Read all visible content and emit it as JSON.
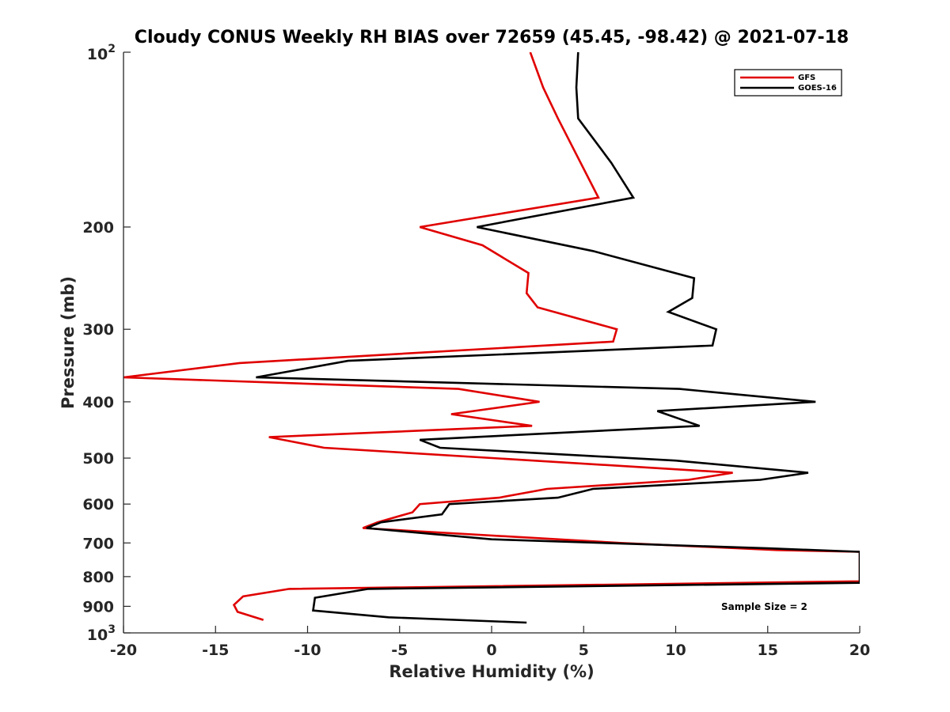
{
  "chart_data": {
    "type": "line",
    "title": "Cloudy CONUS Weekly RH BIAS over 72659 (45.45, -98.42) @ 2021-07-18",
    "xlabel": "Relative Humidity (%)",
    "ylabel": "Pressure (mb)",
    "xlim": [
      -20,
      20
    ],
    "ylim": [
      100,
      1000
    ],
    "y_scale": "log",
    "y_reversed": true,
    "x_ticks": [
      "-20",
      "-15",
      "-10",
      "-5",
      "0",
      "5",
      "10",
      "15",
      "20"
    ],
    "y_ticks": [
      {
        "value": 100,
        "base": "10",
        "exp": "2"
      },
      {
        "value": 200,
        "label": "200"
      },
      {
        "value": 300,
        "label": "300"
      },
      {
        "value": 400,
        "label": "400"
      },
      {
        "value": 500,
        "label": "500"
      },
      {
        "value": 600,
        "label": "600"
      },
      {
        "value": 700,
        "label": "700"
      },
      {
        "value": 800,
        "label": "800"
      },
      {
        "value": 900,
        "label": "900"
      },
      {
        "value": 1000,
        "base": "10",
        "exp": "3"
      }
    ],
    "grid": false,
    "legend_position": "top-right",
    "annotation": "Sample Size = 2",
    "series": [
      {
        "name": "GFS",
        "color": "#e00000",
        "points": [
          [
            2.1,
            100
          ],
          [
            2.8,
            115
          ],
          [
            3.6,
            130
          ],
          [
            5.8,
            178
          ],
          [
            -3.9,
            200
          ],
          [
            -0.5,
            215
          ],
          [
            2.0,
            240
          ],
          [
            1.9,
            260
          ],
          [
            2.5,
            275
          ],
          [
            6.8,
            300
          ],
          [
            6.6,
            315
          ],
          [
            -13.7,
            343
          ],
          [
            -20.0,
            363
          ],
          [
            -1.8,
            380
          ],
          [
            2.6,
            400
          ],
          [
            -2.2,
            420
          ],
          [
            2.2,
            440
          ],
          [
            -12.1,
            460
          ],
          [
            -9.1,
            480
          ],
          [
            13.1,
            530
          ],
          [
            10.7,
            545
          ],
          [
            3.0,
            565
          ],
          [
            0.4,
            585
          ],
          [
            -3.9,
            600
          ],
          [
            -4.3,
            620
          ],
          [
            -6.2,
            645
          ],
          [
            -7.0,
            660
          ],
          [
            7.0,
            700
          ],
          [
            15.5,
            720
          ],
          [
            20.0,
            725
          ],
          [
            20.0,
            815
          ],
          [
            -11.0,
            840
          ],
          [
            -13.5,
            865
          ],
          [
            -14.0,
            895
          ],
          [
            -13.8,
            920
          ],
          [
            -12.4,
            950
          ]
        ]
      },
      {
        "name": "GOES-16",
        "color": "#000000",
        "points": [
          [
            4.7,
            100
          ],
          [
            4.6,
            115
          ],
          [
            4.7,
            130
          ],
          [
            6.5,
            155
          ],
          [
            7.7,
            178
          ],
          [
            -0.8,
            200
          ],
          [
            5.5,
            220
          ],
          [
            11.0,
            245
          ],
          [
            10.9,
            265
          ],
          [
            9.6,
            280
          ],
          [
            12.2,
            300
          ],
          [
            12.0,
            320
          ],
          [
            -7.8,
            340
          ],
          [
            -12.8,
            363
          ],
          [
            10.2,
            380
          ],
          [
            17.6,
            400
          ],
          [
            9.0,
            415
          ],
          [
            11.3,
            440
          ],
          [
            -3.9,
            465
          ],
          [
            -2.8,
            480
          ],
          [
            10.0,
            505
          ],
          [
            17.2,
            530
          ],
          [
            14.6,
            545
          ],
          [
            5.5,
            565
          ],
          [
            3.6,
            585
          ],
          [
            -2.3,
            600
          ],
          [
            -2.7,
            625
          ],
          [
            -6.0,
            645
          ],
          [
            -6.8,
            660
          ],
          [
            0.0,
            690
          ],
          [
            15.0,
            715
          ],
          [
            20.0,
            725
          ],
          [
            20.0,
            820
          ],
          [
            -6.7,
            840
          ],
          [
            -9.6,
            870
          ],
          [
            -9.7,
            915
          ],
          [
            -5.6,
            940
          ],
          [
            1.9,
            960
          ]
        ]
      }
    ]
  }
}
